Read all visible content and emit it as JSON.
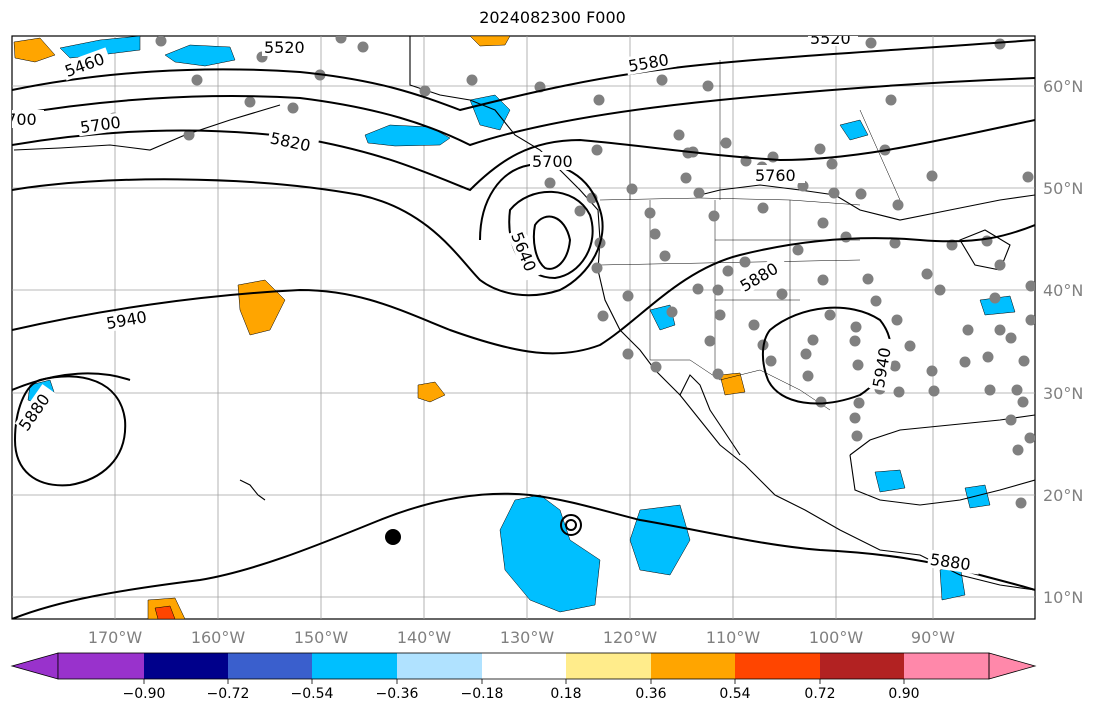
{
  "title": "2024082300 F000",
  "longitude_labels": [
    "170°W",
    "160°W",
    "150°W",
    "140°W",
    "130°W",
    "120°W",
    "110°W",
    "100°W",
    "90°W"
  ],
  "latitude_labels": [
    "60°N",
    "50°N",
    "40°N",
    "30°N",
    "20°N",
    "10°N"
  ],
  "contour_labels": [
    "5460",
    "5520",
    "5580",
    "5520",
    "5700",
    "5700",
    "5820",
    "5760",
    "5640",
    "5880",
    "5940",
    "5880",
    "5940",
    "5880"
  ],
  "colorbar": {
    "tick_labels": [
      "−0.90",
      "−0.72",
      "−0.54",
      "−0.36",
      "−0.18",
      "0.18",
      "0.36",
      "0.54",
      "0.72",
      "0.90"
    ],
    "colors": [
      "#9932cc",
      "#00008b",
      "#3a5fcd",
      "#00bfff",
      "#b0e2ff",
      "#ffffff",
      "#ffec8b",
      "#ffa500",
      "#ff4500",
      "#b22222",
      "#ff88aa"
    ]
  },
  "colors": {
    "gridline": "#a0a0a0",
    "contour": "#000000",
    "station_dot": "#808080",
    "negative_fill": "#00bfff",
    "positive_fill": "#ffa500"
  }
}
